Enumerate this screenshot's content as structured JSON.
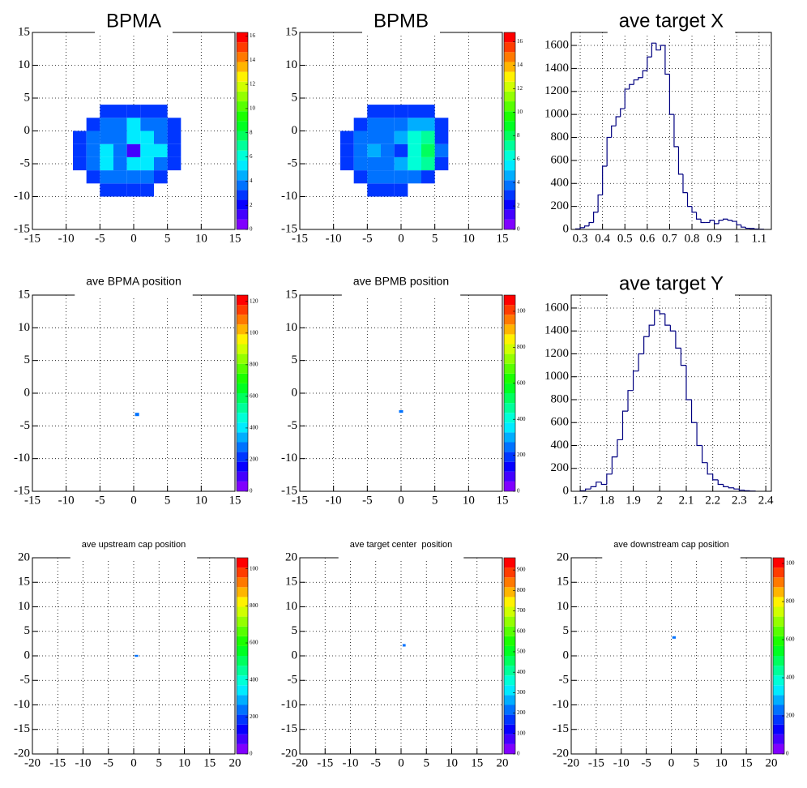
{
  "chart_data": [
    {
      "type": "heatmap",
      "title": "BPMA",
      "xlim": [
        -15,
        15
      ],
      "ylim": [
        -15,
        15
      ],
      "xticks": [
        -15,
        -10,
        -5,
        0,
        5,
        10,
        15
      ],
      "yticks": [
        -15,
        -10,
        -5,
        0,
        5,
        10,
        15
      ],
      "grid": true,
      "xbins": [
        -9,
        -7,
        -5,
        -3,
        -1,
        1,
        3,
        5,
        7
      ],
      "ybins": [
        -10,
        -8,
        -6,
        -4,
        -2,
        0,
        2,
        4
      ],
      "z": [
        [
          null,
          null,
          3,
          3,
          3,
          3,
          null,
          null
        ],
        [
          null,
          3,
          4,
          4,
          4,
          4,
          3,
          null
        ],
        [
          3,
          4,
          5,
          4,
          5,
          5,
          4,
          3
        ],
        [
          3,
          4,
          5,
          4,
          1,
          5,
          5,
          3
        ],
        [
          3,
          4,
          4,
          4,
          5,
          5,
          4,
          3
        ],
        [
          null,
          3,
          4,
          4,
          5,
          4,
          4,
          3
        ],
        [
          null,
          null,
          3,
          3,
          3,
          3,
          3,
          null
        ]
      ],
      "zlim": [
        0,
        16.3
      ],
      "zticks": [
        0,
        2,
        4,
        6,
        8,
        10,
        12,
        14,
        16
      ]
    },
    {
      "type": "heatmap",
      "title": "BPMB",
      "xlim": [
        -15,
        15
      ],
      "ylim": [
        -15,
        15
      ],
      "xticks": [
        -15,
        -10,
        -5,
        0,
        5,
        10,
        15
      ],
      "yticks": [
        -15,
        -10,
        -5,
        0,
        5,
        10,
        15
      ],
      "grid": true,
      "xbins": [
        -9,
        -7,
        -5,
        -3,
        -1,
        1,
        3,
        5,
        7
      ],
      "ybins": [
        -10,
        -8,
        -6,
        -4,
        -2,
        0,
        2,
        4
      ],
      "z": [
        [
          null,
          null,
          3,
          3,
          3,
          null,
          null,
          null
        ],
        [
          null,
          3,
          4,
          4,
          4,
          4,
          3,
          null
        ],
        [
          3,
          4,
          4,
          4,
          5,
          6,
          7,
          3
        ],
        [
          3,
          4,
          5,
          4,
          3,
          6,
          8,
          4
        ],
        [
          3,
          4,
          4,
          4,
          5,
          6,
          7,
          3
        ],
        [
          null,
          3,
          4,
          4,
          4,
          5,
          5,
          3
        ],
        [
          null,
          null,
          3,
          3,
          3,
          3,
          3,
          null
        ]
      ],
      "zlim": [
        0,
        16.8
      ],
      "zticks": [
        0,
        2,
        4,
        6,
        8,
        10,
        12,
        14,
        16
      ]
    },
    {
      "type": "histogram",
      "title": "ave target X",
      "xlim": [
        0.26,
        1.155
      ],
      "ylim": [
        0,
        1713
      ],
      "xticks": [
        0.3,
        0.4,
        0.5,
        0.6,
        0.7,
        0.8,
        0.9,
        1,
        1.1
      ],
      "yticks": [
        0,
        200,
        400,
        600,
        800,
        1000,
        1200,
        1400,
        1600
      ],
      "grid": true,
      "color": "#000080",
      "bins": [
        0.28,
        0.3,
        0.32,
        0.34,
        0.36,
        0.38,
        0.4,
        0.42,
        0.44,
        0.46,
        0.48,
        0.5,
        0.52,
        0.54,
        0.56,
        0.58,
        0.6,
        0.62,
        0.64,
        0.66,
        0.68,
        0.7,
        0.72,
        0.74,
        0.76,
        0.78,
        0.8,
        0.82,
        0.84,
        0.86,
        0.88,
        0.9,
        0.92,
        0.94,
        0.96,
        0.98,
        1,
        1.02,
        1.04,
        1.06,
        1.08,
        1.1,
        1.12
      ],
      "values": [
        5,
        15,
        30,
        60,
        150,
        300,
        550,
        800,
        900,
        980,
        1050,
        1220,
        1260,
        1300,
        1320,
        1380,
        1500,
        1620,
        1560,
        1600,
        1350,
        1000,
        720,
        480,
        320,
        200,
        150,
        90,
        60,
        60,
        80,
        50,
        80,
        90,
        80,
        70,
        40,
        20,
        10,
        8,
        4,
        2
      ]
    },
    {
      "type": "heatmap",
      "title": "ave BPMA position",
      "xlim": [
        -15,
        15
      ],
      "ylim": [
        -15,
        15
      ],
      "xticks": [
        -15,
        -10,
        -5,
        0,
        5,
        10,
        15
      ],
      "yticks": [
        -15,
        -10,
        -5,
        0,
        5,
        10,
        15
      ],
      "grid": true,
      "xbins": [
        0.2,
        0.8
      ],
      "ybins": [
        -3.5,
        -3.0
      ],
      "z": [
        [
          25
        ]
      ],
      "zlim": [
        0,
        124
      ],
      "zticks": [
        0,
        {
          "value": 20,
          "label": "200"
        },
        {
          "value": 40,
          "label": "400"
        },
        {
          "value": 60,
          "label": "600"
        },
        {
          "value": 80,
          "label": "800"
        },
        100,
        120
      ]
    },
    {
      "type": "heatmap",
      "title": "ave BPMB position",
      "xlim": [
        -15,
        15
      ],
      "ylim": [
        -15,
        15
      ],
      "xticks": [
        -15,
        -10,
        -5,
        0,
        5,
        10,
        15
      ],
      "yticks": [
        -15,
        -10,
        -5,
        0,
        5,
        10,
        15
      ],
      "grid": true,
      "xbins": [
        -0.3,
        0.3
      ],
      "ybins": [
        -3.0,
        -2.6
      ],
      "z": [
        [
          22
        ]
      ],
      "zlim": [
        0,
        109
      ],
      "zticks": [
        0,
        {
          "value": 20,
          "label": "200"
        },
        {
          "value": 40,
          "label": "400"
        },
        {
          "value": 60,
          "label": "600"
        },
        {
          "value": 80,
          "label": "800"
        },
        100
      ]
    },
    {
      "type": "histogram",
      "title": "ave target Y",
      "xlim": [
        1.666,
        2.421
      ],
      "ylim": [
        0,
        1713
      ],
      "xticks": [
        1.7,
        1.8,
        1.9,
        2,
        2.1,
        2.2,
        2.3,
        2.4
      ],
      "yticks": [
        0,
        200,
        400,
        600,
        800,
        1000,
        1200,
        1400,
        1600
      ],
      "grid": true,
      "color": "#000080",
      "bins": [
        1.7,
        1.72,
        1.74,
        1.76,
        1.78,
        1.8,
        1.82,
        1.84,
        1.86,
        1.88,
        1.9,
        1.92,
        1.94,
        1.96,
        1.98,
        2,
        2.02,
        2.04,
        2.06,
        2.08,
        2.1,
        2.12,
        2.14,
        2.16,
        2.18,
        2.2,
        2.22,
        2.24,
        2.26,
        2.28,
        2.3,
        2.32,
        2.34,
        2.36
      ],
      "values": [
        5,
        20,
        40,
        80,
        60,
        150,
        300,
        450,
        700,
        880,
        1050,
        1200,
        1350,
        1450,
        1580,
        1550,
        1450,
        1400,
        1250,
        1100,
        800,
        600,
        400,
        250,
        150,
        100,
        60,
        40,
        30,
        20,
        10,
        5,
        2
      ]
    },
    {
      "type": "heatmap",
      "title": "ave upstream cap position",
      "xlim": [
        -20,
        20
      ],
      "ylim": [
        -20,
        20
      ],
      "xticks": [
        -20,
        -15,
        -10,
        -5,
        0,
        5,
        10,
        15,
        20
      ],
      "yticks": [
        -20,
        -15,
        -10,
        -5,
        0,
        5,
        10,
        15,
        20
      ],
      "grid": true,
      "xbins": [
        0.2,
        0.9
      ],
      "ybins": [
        -0.2,
        0.2
      ],
      "z": [
        [
          22
        ]
      ],
      "zlim": [
        0,
        106
      ],
      "zticks": [
        0,
        {
          "value": 20,
          "label": "200"
        },
        {
          "value": 40,
          "label": "400"
        },
        {
          "value": 60,
          "label": "600"
        },
        {
          "value": 80,
          "label": "800"
        },
        100
      ]
    },
    {
      "type": "heatmap",
      "title": "ave target center  position",
      "xlim": [
        -20,
        20
      ],
      "ylim": [
        -20,
        20
      ],
      "xticks": [
        -20,
        -15,
        -10,
        -5,
        0,
        5,
        10,
        15,
        20
      ],
      "yticks": [
        -20,
        -15,
        -10,
        -5,
        0,
        5,
        10,
        15,
        20
      ],
      "grid": true,
      "xbins": [
        0.3,
        0.9
      ],
      "ybins": [
        1.9,
        2.4
      ],
      "z": [
        [
          200
        ]
      ],
      "zlim": [
        0,
        960
      ],
      "zticks": [
        0,
        100,
        200,
        300,
        400,
        500,
        600,
        700,
        800,
        900
      ]
    },
    {
      "type": "heatmap",
      "title": "ave downstream cap position",
      "xlim": [
        -20,
        20
      ],
      "ylim": [
        -20,
        20
      ],
      "xticks": [
        -20,
        -15,
        -10,
        -5,
        0,
        5,
        10,
        15,
        20
      ],
      "yticks": [
        -20,
        -15,
        -10,
        -5,
        0,
        5,
        10,
        15,
        20
      ],
      "grid": true,
      "xbins": [
        0.2,
        0.9
      ],
      "ybins": [
        3.5,
        4.0
      ],
      "z": [
        [
          22
        ]
      ],
      "zlim": [
        0,
        103
      ],
      "zticks": [
        0,
        {
          "value": 20,
          "label": "200"
        },
        {
          "value": 40,
          "label": "400"
        },
        {
          "value": 60,
          "label": "600"
        },
        {
          "value": 80,
          "label": "800"
        },
        100
      ]
    }
  ]
}
